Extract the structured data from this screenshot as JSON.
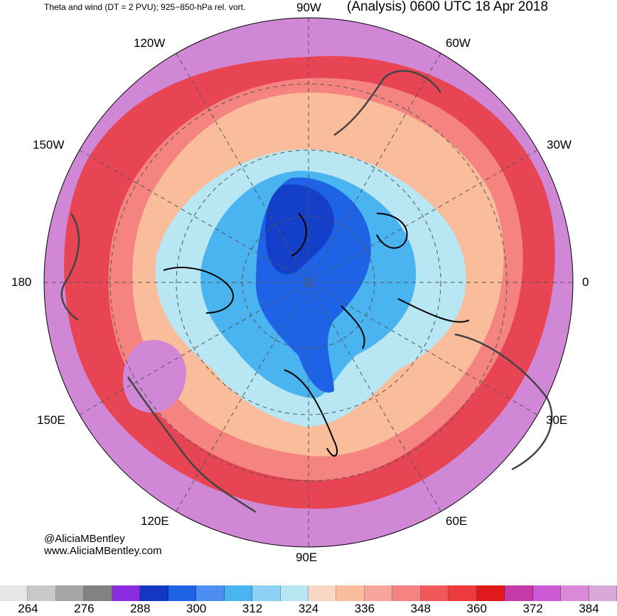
{
  "header": {
    "left": "Theta and wind (DT = 2 PVU); 925−850-hPa rel. vort.",
    "right": "(Analysis) 0600 UTC 18 Apr 2018"
  },
  "longitude_labels": {
    "top": "90W",
    "upper_left": "120W",
    "upper_right": "60W",
    "left_upper": "150W",
    "right_upper": "30W",
    "left": "180",
    "right": "0",
    "left_lower": "150E",
    "right_lower": "30E",
    "lower_left": "120E",
    "lower_right": "60E",
    "bottom": "90E"
  },
  "credit": {
    "handle": "@AliciaMBentley",
    "website": "www.AliciaMBentley.com"
  },
  "colorbar": {
    "colors": [
      "#e6e6e6",
      "#c8c8c8",
      "#a6a6a6",
      "#828282",
      "#8a2be2",
      "#1238c2",
      "#1e62e6",
      "#4d8ef2",
      "#4ab4f0",
      "#8fd0f5",
      "#b8e6f2",
      "#f8d8c4",
      "#f9bd9c",
      "#f7a49c",
      "#f5837f",
      "#f0585a",
      "#ec3a3d",
      "#e01a1a",
      "#c63aa8",
      "#cc5ad6",
      "#d88ad8",
      "#d8a8d8"
    ],
    "tick_labels": [
      "264",
      "276",
      "288",
      "300",
      "312",
      "324",
      "336",
      "348",
      "360",
      "372",
      "384"
    ]
  }
}
